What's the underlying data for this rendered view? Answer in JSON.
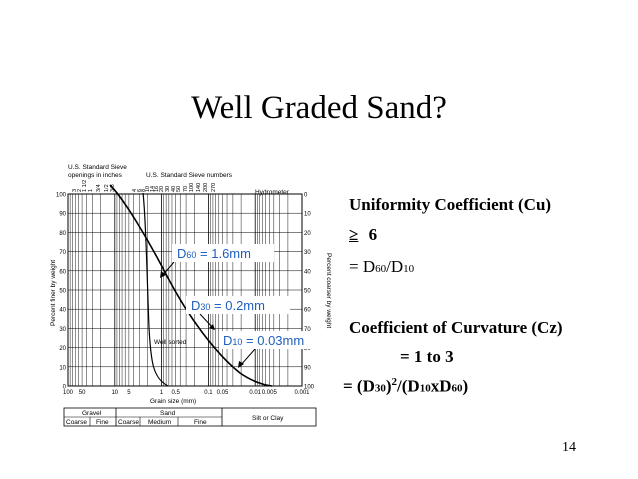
{
  "slide": {
    "title": "Well Graded Sand?",
    "page_number": "14"
  },
  "chart": {
    "top_labels": {
      "sieve_openings": "U.S. Standard Sieve\nopenings in inches",
      "sieve_numbers": "U.S. Standard Sieve numbers",
      "hydrometer": "Hydrometer"
    },
    "opening_ticks": [
      "3",
      "2",
      "1 1/2",
      "1",
      "3/4",
      "1/2",
      "3/8"
    ],
    "number_ticks": [
      "4",
      "6",
      "8",
      "10",
      "14",
      "16",
      "20",
      "30",
      "40",
      "50",
      "70",
      "100",
      "140",
      "200",
      "270"
    ],
    "left_ticks": [
      "100",
      "90",
      "80",
      "70",
      "60",
      "50",
      "40",
      "30",
      "20",
      "10",
      "0"
    ],
    "right_ticks": [
      "0",
      "10",
      "20",
      "30",
      "40",
      "50",
      "60",
      "70",
      "80",
      "90",
      "100"
    ],
    "x_ticks": [
      "100",
      "50",
      "10",
      "5",
      "1",
      "0.5",
      "0.1",
      "0.05",
      "0.01",
      "0.005",
      "0.001"
    ],
    "y_label_left": "Percent finer by weight",
    "y_label_right": "Percent coarser by weight",
    "x_label": "Grain size (mm)",
    "curve_label": "Well sorted",
    "annotations": {
      "d60": {
        "label": "D",
        "sub": "60",
        "value": " = 1.6mm"
      },
      "d30": {
        "label": "D",
        "sub": "30",
        "value": " = 0.2mm"
      },
      "d10": {
        "label": "D",
        "sub": "10",
        "value": " = 0.03mm"
      }
    },
    "classification": {
      "gravel": "Gravel",
      "sand": "Sand",
      "silt_clay": "Silt or Clay",
      "coarse": "Coarse",
      "fine": "Fine",
      "medium": "Medium"
    },
    "colors": {
      "annotation_text": "#1f5fbf",
      "annotation_box": "#ffffff",
      "page_background": "#ffffff"
    }
  },
  "right_text": {
    "cu_heading": "Uniformity Coefficient (Cu)",
    "cu_condition_symbol": "≥",
    "cu_condition_value": "6",
    "cu_formula": {
      "prefix": "= D",
      "sub1": "60",
      "mid": "/D",
      "sub2": "10"
    },
    "cz_heading": "Coefficient of Curvature (Cz)",
    "cz_condition": "= 1 to 3",
    "cz_formula": {
      "p1": "= (D",
      "s1": "30",
      "p2": ")",
      "sup": "2",
      "p3": "/(D",
      "s2": "10",
      "p4": "xD",
      "s3": "60",
      "p5": ")"
    }
  }
}
